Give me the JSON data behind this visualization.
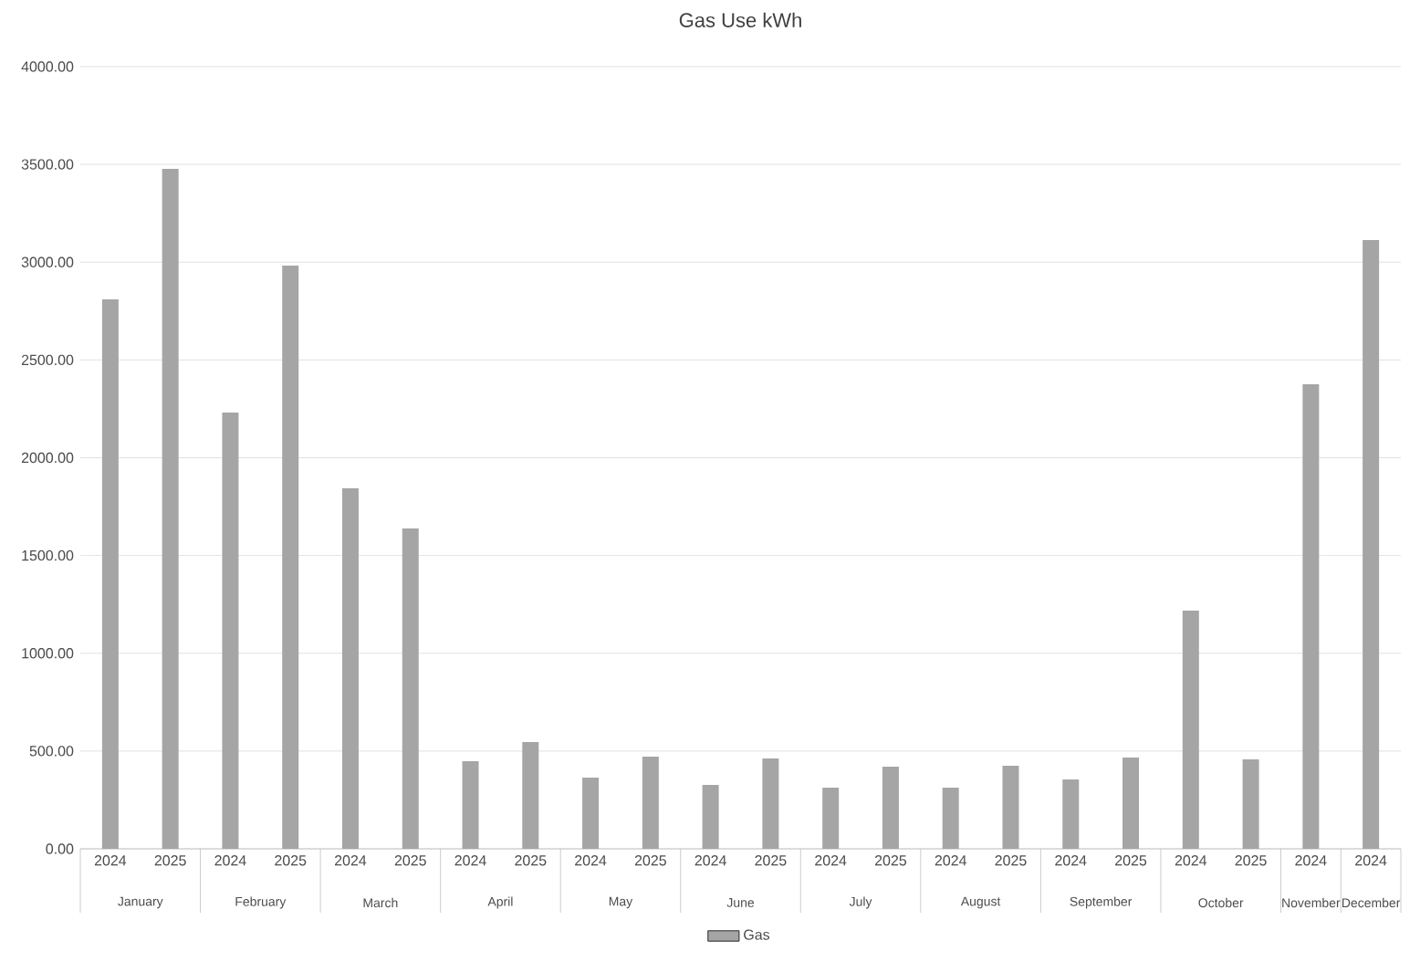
{
  "chart_data": {
    "type": "bar",
    "title": "Gas Use kWh",
    "categories": [
      "2024",
      "2025",
      "2024",
      "2025",
      "2024",
      "2025",
      "2024",
      "2025",
      "2024",
      "2025",
      "2024",
      "2025",
      "2024",
      "2025",
      "2024",
      "2025",
      "2024",
      "2025",
      "2024",
      "2025",
      "2024",
      "2024"
    ],
    "series": [
      {
        "name": "Gas",
        "color": "#a5a5a5",
        "values": [
          2810,
          3477,
          2231,
          2983,
          1844,
          1638,
          448,
          546,
          364,
          471,
          327,
          462,
          313,
          420,
          313,
          425,
          355,
          467,
          1218,
          457,
          2376,
          3113
        ]
      }
    ],
    "annotations": [
      "January",
      "February",
      "March",
      "April",
      "May",
      "June",
      "July",
      "August",
      "September",
      "October",
      "November",
      "December"
    ],
    "ylim": [
      0,
      4000
    ],
    "yticks": [
      {
        "value": 0,
        "label": "0.00"
      },
      {
        "value": 500,
        "label": "500.00"
      },
      {
        "value": 1000,
        "label": "1000.00"
      },
      {
        "value": 1500,
        "label": "1500.00"
      },
      {
        "value": 2000,
        "label": "2000.00"
      },
      {
        "value": 2500,
        "label": "2500.00"
      },
      {
        "value": 3000,
        "label": "3000.00"
      },
      {
        "value": 3500,
        "label": "3500.00"
      },
      {
        "value": 4000,
        "label": "4000.00"
      }
    ],
    "grid": "y",
    "legend": "bottom"
  }
}
